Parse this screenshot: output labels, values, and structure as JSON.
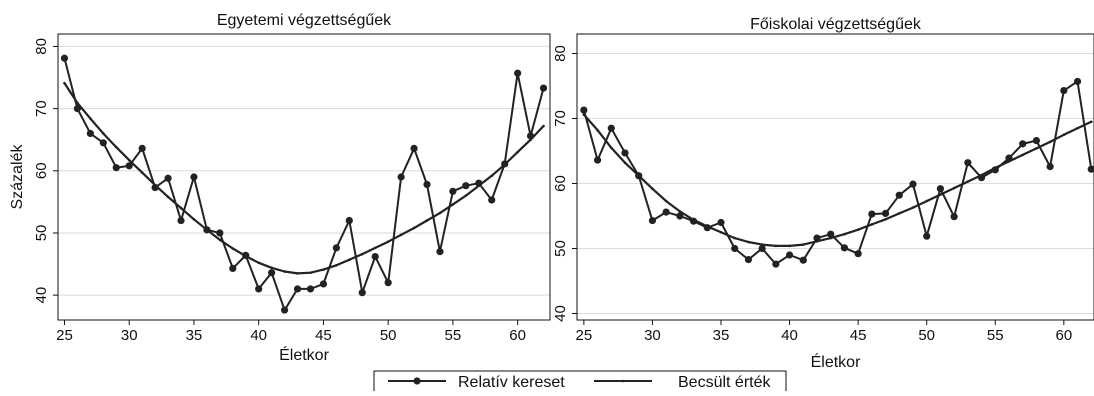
{
  "chart_data": [
    {
      "type": "line",
      "title": "Egyetemi végzettségűek",
      "xlabel": "Életkor",
      "ylabel": "Százalék",
      "xlim": [
        24.5,
        62.5
      ],
      "ylim": [
        36,
        82
      ],
      "x_ticks": [
        25,
        30,
        35,
        40,
        45,
        50,
        55,
        60
      ],
      "y_ticks": [
        40,
        50,
        60,
        70,
        80
      ],
      "grid": "horizontal",
      "series": [
        {
          "name": "Relatív kereset",
          "marker": "circle",
          "x": [
            25,
            26,
            27,
            28,
            29,
            30,
            31,
            32,
            33,
            34,
            35,
            36,
            37,
            38,
            39,
            40,
            41,
            42,
            43,
            44,
            45,
            46,
            47,
            48,
            49,
            50,
            51,
            52,
            53,
            54,
            55,
            56,
            57,
            58,
            59,
            60,
            61,
            62
          ],
          "y": [
            78.1,
            70.0,
            66.0,
            64.5,
            60.5,
            60.8,
            63.6,
            57.3,
            58.8,
            52.0,
            59.0,
            50.5,
            50.0,
            44.3,
            46.4,
            41.0,
            43.6,
            37.6,
            41.0,
            41.0,
            41.8,
            47.6,
            52.0,
            40.4,
            46.2,
            42.0,
            59.0,
            63.6,
            57.8,
            47.0,
            56.7,
            57.6,
            58.0,
            55.3,
            61.1,
            75.7,
            65.6,
            73.3
          ]
        },
        {
          "name": "Becsült érték",
          "marker": "none",
          "x": [
            25,
            26,
            27,
            28,
            29,
            30,
            31,
            32,
            33,
            34,
            35,
            36,
            37,
            38,
            39,
            40,
            41,
            42,
            43,
            44,
            45,
            46,
            47,
            48,
            49,
            50,
            51,
            52,
            53,
            54,
            55,
            56,
            57,
            58,
            59,
            60,
            61,
            62
          ],
          "y": [
            74.1,
            70.9,
            68.4,
            66.0,
            63.8,
            61.7,
            59.7,
            57.7,
            55.8,
            54.0,
            52.2,
            50.5,
            48.9,
            47.5,
            46.3,
            45.2,
            44.4,
            43.8,
            43.5,
            43.6,
            44.1,
            44.8,
            45.7,
            46.6,
            47.6,
            48.6,
            49.7,
            50.8,
            52.0,
            53.2,
            54.6,
            56.0,
            57.6,
            59.2,
            61.0,
            63.0,
            65.0,
            67.2
          ]
        }
      ]
    },
    {
      "type": "line",
      "title": "Főiskolai végzettségűek",
      "xlabel": "Életkor",
      "ylabel": "",
      "xlim": [
        24.5,
        62.2
      ],
      "ylim": [
        39,
        83
      ],
      "x_ticks": [
        25,
        30,
        35,
        40,
        45,
        50,
        55,
        60
      ],
      "y_ticks": [
        40,
        50,
        60,
        70,
        80
      ],
      "grid": "horizontal",
      "series": [
        {
          "name": "Relatív kereset",
          "marker": "circle",
          "x": [
            25,
            26,
            27,
            28,
            29,
            30,
            31,
            32,
            33,
            34,
            35,
            36,
            37,
            38,
            39,
            40,
            41,
            42,
            43,
            44,
            45,
            46,
            47,
            48,
            49,
            50,
            51,
            52,
            53,
            54,
            55,
            56,
            57,
            58,
            59,
            60,
            61,
            62
          ],
          "y": [
            71.3,
            63.6,
            68.5,
            64.7,
            61.2,
            54.3,
            55.6,
            55.0,
            54.2,
            53.2,
            54.0,
            50.0,
            48.3,
            50.0,
            47.6,
            49.0,
            48.2,
            51.6,
            52.2,
            50.1,
            49.2,
            55.3,
            55.4,
            58.2,
            59.9,
            51.9,
            59.2,
            54.9,
            63.2,
            60.9,
            62.1,
            63.9,
            66.1,
            66.6,
            62.6,
            74.3,
            75.7,
            62.2
          ]
        },
        {
          "name": "Becsült érték",
          "marker": "none",
          "x": [
            25,
            26,
            27,
            28,
            29,
            30,
            31,
            32,
            33,
            34,
            35,
            36,
            37,
            38,
            39,
            40,
            41,
            42,
            43,
            44,
            45,
            46,
            47,
            48,
            49,
            50,
            51,
            52,
            53,
            54,
            55,
            56,
            57,
            58,
            59,
            60,
            61,
            62
          ],
          "y": [
            70.6,
            68.2,
            65.5,
            63.2,
            61.2,
            59.2,
            57.3,
            55.7,
            54.4,
            53.4,
            52.5,
            51.6,
            51.0,
            50.6,
            50.4,
            50.4,
            50.6,
            51.1,
            51.6,
            52.2,
            52.9,
            53.7,
            54.5,
            55.4,
            56.3,
            57.3,
            58.3,
            59.3,
            60.3,
            61.3,
            62.4,
            63.4,
            64.4,
            65.4,
            66.4,
            67.5,
            68.5,
            69.5
          ]
        }
      ]
    }
  ],
  "legend": {
    "placement": "bottom-center",
    "items": [
      "Relatív kereset",
      "Becsült érték"
    ]
  },
  "colors": {
    "line": "#222222",
    "axis": "#111111",
    "grid": "#dcdcdc",
    "background": "#ffffff"
  }
}
